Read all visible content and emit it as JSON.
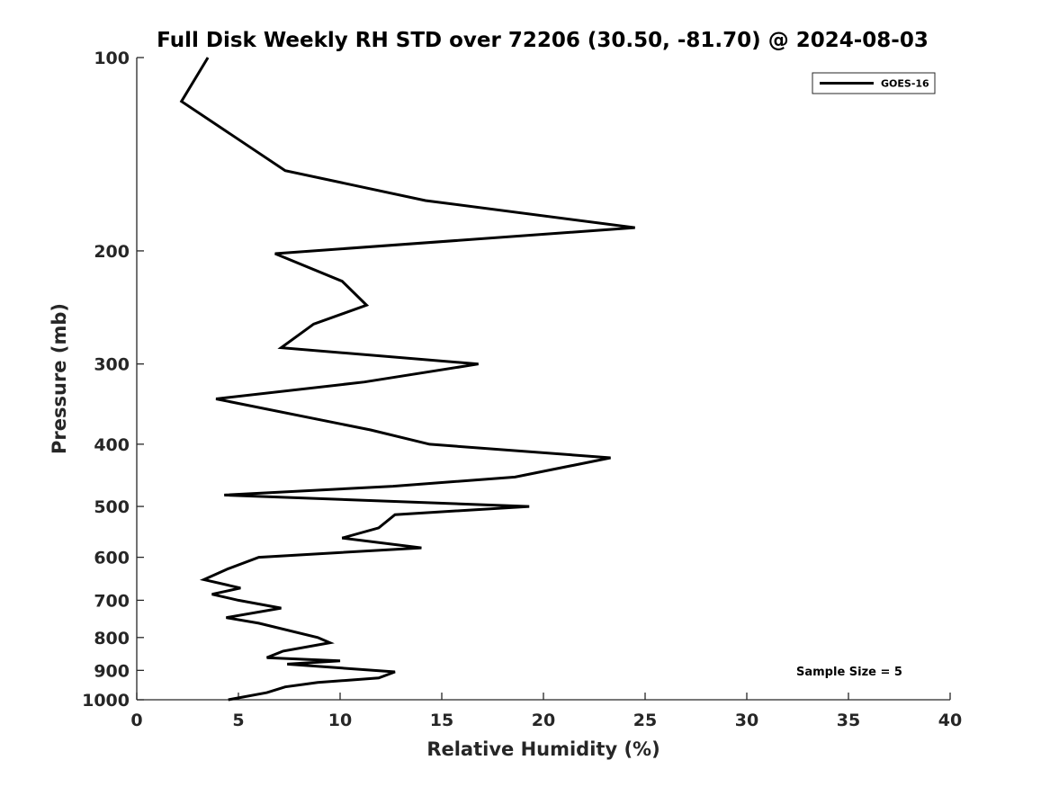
{
  "chart_data": {
    "type": "line",
    "title": "Full Disk Weekly RH STD over 72206 (30.50, -81.70) @ 2024-08-03",
    "xlabel": "Relative Humidity (%)",
    "ylabel": "Pressure (mb)",
    "xlim": [
      0,
      40
    ],
    "ylim": [
      100,
      1000
    ],
    "y_scale": "log",
    "y_reversed": true,
    "grid": false,
    "legend_position": "top-right",
    "x_ticks": [
      0,
      5,
      10,
      15,
      20,
      25,
      30,
      35,
      40
    ],
    "x_tick_labels": [
      "0",
      "5",
      "10",
      "15",
      "20",
      "25",
      "30",
      "35",
      "40"
    ],
    "y_ticks": [
      100,
      200,
      300,
      400,
      500,
      600,
      700,
      800,
      900,
      1000
    ],
    "y_tick_labels": [
      "100",
      "200",
      "300",
      "400",
      "500",
      "600",
      "700",
      "800",
      "900",
      "1000"
    ],
    "series": [
      {
        "name": "GOES-16",
        "color": "#000000",
        "x": [
          3.5,
          2.2,
          7.3,
          14.2,
          24.5,
          6.8,
          10.1,
          11.3,
          8.7,
          7.1,
          16.8,
          11.2,
          3.9,
          11.5,
          14.4,
          23.3,
          18.6,
          12.6,
          4.3,
          19.3,
          12.7,
          11.9,
          10.1,
          14.0,
          6.0,
          4.5,
          3.3,
          5.1,
          3.7,
          5.0,
          7.1,
          4.4,
          6.0,
          8.9,
          9.5,
          7.2,
          6.4,
          10.0,
          7.4,
          12.7,
          11.9,
          8.9,
          7.3,
          6.4,
          4.5
        ],
        "y": [
          100,
          117,
          150,
          167,
          184,
          202,
          223,
          243,
          260,
          283,
          300,
          320,
          340,
          380,
          400,
          420,
          450,
          465,
          480,
          500,
          515,
          540,
          560,
          580,
          600,
          625,
          650,
          670,
          685,
          700,
          720,
          745,
          760,
          800,
          815,
          840,
          860,
          870,
          880,
          905,
          925,
          940,
          955,
          975,
          1000
        ]
      }
    ],
    "annotations": [
      {
        "text": "Sample Size = 5",
        "x": 35,
        "y": 900
      }
    ]
  }
}
